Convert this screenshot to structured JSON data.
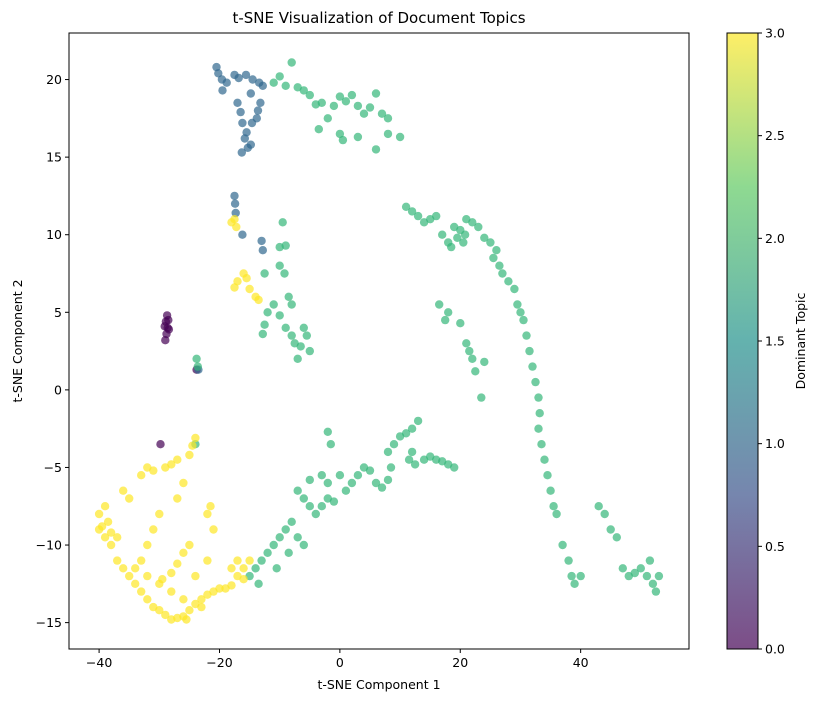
{
  "chart_data": {
    "type": "scatter",
    "title": "t-SNE Visualization of Document Topics",
    "xlabel": "t-SNE Component 1",
    "ylabel": "t-SNE Component 2",
    "xlim": [
      -45,
      58
    ],
    "ylim": [
      -16.7,
      23
    ],
    "xticks": [
      -40,
      -20,
      0,
      20,
      40
    ],
    "yticks": [
      -15,
      -10,
      -5,
      0,
      5,
      10,
      15,
      20
    ],
    "grid": false,
    "point_alpha": 0.7,
    "colorbar": {
      "label": "Dominant Topic",
      "range": [
        0,
        3
      ],
      "ticks": [
        "0.0",
        "0.5",
        "1.0",
        "1.5",
        "2.0",
        "2.5",
        "3.0"
      ],
      "colormap": [
        "#440154",
        "#3b528b",
        "#21918c",
        "#5ec962",
        "#fde725"
      ]
    },
    "clusters": [
      {
        "topic": 0,
        "points": [
          [
            -29,
            3.2
          ],
          [
            -28.8,
            3.6
          ],
          [
            -28.6,
            4.0
          ],
          [
            -28.9,
            4.4
          ],
          [
            -28.7,
            4.8
          ],
          [
            -28.4,
            3.9
          ],
          [
            -29.1,
            4.1
          ],
          [
            -28.5,
            4.5
          ],
          [
            -23.8,
            1.3
          ],
          [
            -29.8,
            -3.5
          ]
        ]
      },
      {
        "topic": 1,
        "points": [
          [
            -20.5,
            20.8
          ],
          [
            -20.2,
            20.4
          ],
          [
            -19.6,
            20.0
          ],
          [
            -18.8,
            19.8
          ],
          [
            -17.5,
            20.3
          ],
          [
            -16.8,
            20.1
          ],
          [
            -15.6,
            20.3
          ],
          [
            -14.5,
            20.0
          ],
          [
            -13.4,
            19.8
          ],
          [
            -12.8,
            19.6
          ],
          [
            -19.5,
            19.3
          ],
          [
            -14.8,
            19.1
          ],
          [
            -13.2,
            18.5
          ],
          [
            -13.6,
            18.0
          ],
          [
            -13.8,
            17.5
          ],
          [
            -16.5,
            17.9
          ],
          [
            -16.2,
            17.2
          ],
          [
            -15.5,
            16.6
          ],
          [
            -15.8,
            16.2
          ],
          [
            -15.3,
            15.6
          ],
          [
            -14.8,
            15.8
          ],
          [
            -16.3,
            15.3
          ],
          [
            -14.6,
            17.2
          ],
          [
            -17,
            18.5
          ],
          [
            -17.5,
            12.5
          ],
          [
            -17.4,
            12.0
          ],
          [
            -17.3,
            11.4
          ],
          [
            -16.2,
            10.0
          ],
          [
            -13,
            9.6
          ],
          [
            -12.8,
            9.0
          ],
          [
            -23.5,
            1.3
          ]
        ]
      },
      {
        "topic": 2,
        "points": [
          [
            -11,
            19.8
          ],
          [
            -10,
            20.2
          ],
          [
            -9,
            19.6
          ],
          [
            -8,
            21.1
          ],
          [
            -7,
            19.5
          ],
          [
            -6,
            19.3
          ],
          [
            -5,
            19.0
          ],
          [
            -4,
            18.4
          ],
          [
            -3,
            18.5
          ],
          [
            -2,
            17.5
          ],
          [
            -1,
            18.3
          ],
          [
            0,
            18.9
          ],
          [
            1,
            18.6
          ],
          [
            2,
            19.0
          ],
          [
            3,
            18.3
          ],
          [
            4,
            17.8
          ],
          [
            5,
            18.2
          ],
          [
            6,
            19.1
          ],
          [
            7,
            17.8
          ],
          [
            8,
            17.5
          ],
          [
            -3.5,
            16.8
          ],
          [
            0,
            16.5
          ],
          [
            0.5,
            16.1
          ],
          [
            3,
            16.3
          ],
          [
            6,
            15.5
          ],
          [
            8,
            16.5
          ],
          [
            10,
            16.3
          ],
          [
            -9.5,
            10.8
          ],
          [
            -9,
            9.3
          ],
          [
            -10,
            9.2
          ],
          [
            -10,
            8.0
          ],
          [
            -9.2,
            7.5
          ],
          [
            -8.5,
            6.0
          ],
          [
            -8,
            5.5
          ],
          [
            -12.5,
            7.5
          ],
          [
            -11,
            5.5
          ],
          [
            -12,
            5.0
          ],
          [
            -12.5,
            4.2
          ],
          [
            -12.8,
            3.6
          ],
          [
            -10,
            4.8
          ],
          [
            -9,
            4.0
          ],
          [
            -8,
            3.5
          ],
          [
            -7.5,
            3.0
          ],
          [
            -6,
            4.0
          ],
          [
            -5.5,
            3.5
          ],
          [
            -5,
            2.5
          ],
          [
            -7,
            2.0
          ],
          [
            -6.5,
            2.8
          ],
          [
            -23.8,
            2.0
          ],
          [
            -23.6,
            1.5
          ],
          [
            -24,
            -3.5
          ],
          [
            -2,
            -2.7
          ],
          [
            -1.5,
            -3.5
          ],
          [
            0,
            -5.5
          ],
          [
            -2,
            -6.0
          ],
          [
            -3,
            -5.5
          ],
          [
            -5,
            -5.8
          ],
          [
            -7,
            -6.5
          ],
          [
            -6,
            -7.0
          ],
          [
            -5,
            -7.5
          ],
          [
            -4,
            -8.0
          ],
          [
            -3,
            -7.5
          ],
          [
            -2,
            -7.0
          ],
          [
            -1,
            -7.2
          ],
          [
            1,
            -6.5
          ],
          [
            2,
            -6.0
          ],
          [
            3,
            -5.5
          ],
          [
            4,
            -5.0
          ],
          [
            5,
            -5.2
          ],
          [
            6,
            -6.0
          ],
          [
            7,
            -6.3
          ],
          [
            8,
            -5.8
          ],
          [
            8.5,
            -5.0
          ],
          [
            8,
            -4.0
          ],
          [
            9,
            -3.5
          ],
          [
            10,
            -3.0
          ],
          [
            11,
            -2.8
          ],
          [
            12,
            -2.5
          ],
          [
            13,
            -2.0
          ],
          [
            12,
            -4.0
          ],
          [
            11.5,
            -4.5
          ],
          [
            12.5,
            -4.8
          ],
          [
            14,
            -4.5
          ],
          [
            15,
            -4.3
          ],
          [
            16,
            -4.5
          ],
          [
            17,
            -4.6
          ],
          [
            18,
            -4.8
          ],
          [
            19,
            -5.0
          ],
          [
            -8,
            -8.5
          ],
          [
            -9,
            -9.0
          ],
          [
            -10,
            -9.5
          ],
          [
            -11,
            -10.0
          ],
          [
            -12,
            -10.5
          ],
          [
            -13,
            -11.0
          ],
          [
            -14,
            -11.5
          ],
          [
            -15,
            -12.0
          ],
          [
            -7,
            -9.5
          ],
          [
            -6,
            -10.0
          ],
          [
            -8.5,
            -10.5
          ],
          [
            -10.5,
            -11.5
          ],
          [
            -13.5,
            -12.5
          ],
          [
            11,
            11.8
          ],
          [
            12,
            11.5
          ],
          [
            13,
            11.2
          ],
          [
            14,
            10.8
          ],
          [
            15,
            11.0
          ],
          [
            16,
            11.2
          ],
          [
            17,
            10.0
          ],
          [
            18,
            9.5
          ],
          [
            19,
            10.5
          ],
          [
            20,
            10.3
          ],
          [
            21,
            11.0
          ],
          [
            22,
            10.8
          ],
          [
            23,
            10.5
          ],
          [
            24,
            9.8
          ],
          [
            25,
            9.5
          ],
          [
            26,
            9.0
          ],
          [
            25.5,
            8.5
          ],
          [
            26.5,
            8.0
          ],
          [
            27,
            7.5
          ],
          [
            28,
            7.0
          ],
          [
            29,
            6.5
          ],
          [
            29.5,
            5.5
          ],
          [
            30,
            5.0
          ],
          [
            30.5,
            4.5
          ],
          [
            31,
            3.5
          ],
          [
            31.5,
            2.5
          ],
          [
            32,
            1.5
          ],
          [
            32.5,
            0.5
          ],
          [
            33,
            -0.5
          ],
          [
            33.2,
            -1.5
          ],
          [
            33,
            -2.5
          ],
          [
            33.5,
            -3.5
          ],
          [
            34,
            -4.5
          ],
          [
            34.5,
            -5.5
          ],
          [
            35,
            -6.5
          ],
          [
            35.5,
            -7.5
          ],
          [
            36,
            -8.0
          ],
          [
            37,
            -10.0
          ],
          [
            38,
            -11.0
          ],
          [
            38.5,
            -12.0
          ],
          [
            39,
            -12.5
          ],
          [
            40,
            -12.0
          ],
          [
            43,
            -7.5
          ],
          [
            44,
            -8.0
          ],
          [
            45,
            -9.0
          ],
          [
            46,
            -9.5
          ],
          [
            47,
            -11.5
          ],
          [
            48,
            -12.0
          ],
          [
            49,
            -11.8
          ],
          [
            50,
            -11.5
          ],
          [
            51,
            -12.0
          ],
          [
            52,
            -12.5
          ],
          [
            53,
            -12.0
          ],
          [
            52.5,
            -13.0
          ],
          [
            51.5,
            -11.0
          ],
          [
            20.5,
            9.5
          ],
          [
            20.8,
            10.0
          ],
          [
            19.5,
            9.8
          ],
          [
            18.5,
            9.2
          ],
          [
            17.5,
            4.5
          ],
          [
            18,
            5.0
          ],
          [
            16.5,
            5.5
          ],
          [
            20,
            4.3
          ],
          [
            21,
            3.0
          ],
          [
            22,
            2.0
          ],
          [
            24,
            1.8
          ],
          [
            22.5,
            1.2
          ],
          [
            23.5,
            -0.5
          ],
          [
            21.5,
            2.5
          ]
        ]
      },
      {
        "topic": 3,
        "points": [
          [
            -40,
            -8.0
          ],
          [
            -39,
            -7.5
          ],
          [
            -38.5,
            -8.5
          ],
          [
            -40,
            -9.0
          ],
          [
            -39,
            -9.5
          ],
          [
            -38,
            -10.0
          ],
          [
            -37,
            -11.0
          ],
          [
            -36,
            -11.5
          ],
          [
            -35,
            -12.0
          ],
          [
            -34,
            -12.5
          ],
          [
            -33,
            -13.0
          ],
          [
            -32,
            -13.5
          ],
          [
            -31,
            -14.0
          ],
          [
            -30,
            -14.2
          ],
          [
            -29,
            -14.5
          ],
          [
            -28,
            -14.8
          ],
          [
            -27,
            -14.7
          ],
          [
            -26,
            -14.6
          ],
          [
            -25,
            -14.2
          ],
          [
            -24,
            -13.8
          ],
          [
            -23,
            -13.5
          ],
          [
            -22,
            -13.2
          ],
          [
            -21,
            -13.0
          ],
          [
            -20,
            -12.8
          ],
          [
            -19,
            -12.8
          ],
          [
            -18,
            -12.6
          ],
          [
            -17,
            -12.0
          ],
          [
            -16,
            -11.5
          ],
          [
            -15,
            -11.0
          ],
          [
            -36,
            -6.5
          ],
          [
            -35,
            -7.0
          ],
          [
            -33,
            -5.5
          ],
          [
            -32,
            -5.0
          ],
          [
            -31,
            -5.2
          ],
          [
            -29,
            -5.0
          ],
          [
            -28,
            -4.8
          ],
          [
            -27,
            -4.5
          ],
          [
            -25,
            -4.2
          ],
          [
            -24,
            -3.1
          ],
          [
            -24.5,
            -3.6
          ],
          [
            -26,
            -6.0
          ],
          [
            -27,
            -7.0
          ],
          [
            -30,
            -8.0
          ],
          [
            -31,
            -9.0
          ],
          [
            -32,
            -10.0
          ],
          [
            -33,
            -11.0
          ],
          [
            -34,
            -11.5
          ],
          [
            -32,
            -12.0
          ],
          [
            -30,
            -12.5
          ],
          [
            -28,
            -13.0
          ],
          [
            -26,
            -13.5
          ],
          [
            -24,
            -12.0
          ],
          [
            -22,
            -11.0
          ],
          [
            -21,
            -9.0
          ],
          [
            -22,
            -8.0
          ],
          [
            -21.5,
            -7.5
          ],
          [
            -25,
            -10.0
          ],
          [
            -26,
            -10.5
          ],
          [
            -27,
            -11.2
          ],
          [
            -28,
            -11.8
          ],
          [
            -29.5,
            -12.2
          ],
          [
            -18,
            -11.5
          ],
          [
            -17,
            -11.0
          ],
          [
            -16,
            -12.2
          ],
          [
            -23,
            -14.0
          ],
          [
            -25.5,
            -14.8
          ],
          [
            -37,
            -9.5
          ],
          [
            -39.5,
            -8.8
          ],
          [
            -38,
            -9.2
          ],
          [
            -17.5,
            11.0
          ],
          [
            -17.2,
            10.5
          ],
          [
            -18,
            10.8
          ],
          [
            -16,
            7.5
          ],
          [
            -15.5,
            7.2
          ],
          [
            -17,
            7.0
          ],
          [
            -17.5,
            6.6
          ],
          [
            -15,
            6.5
          ],
          [
            -14,
            6.0
          ],
          [
            -13.5,
            5.8
          ]
        ]
      }
    ]
  }
}
